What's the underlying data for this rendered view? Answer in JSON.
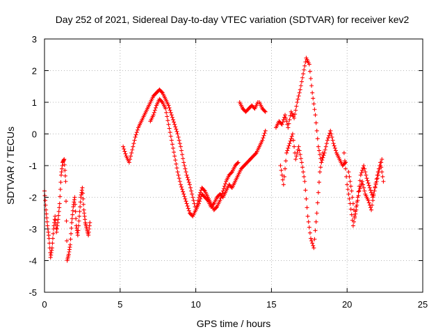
{
  "chart_data": {
    "type": "scatter",
    "title": "Day 252 of 2021, Sidereal Day-to-day VTEC variation (SDTVAR) for receiver kev2",
    "xlabel": "GPS time / hours",
    "ylabel": "SDTVAR / TECUs",
    "xlim": [
      0,
      25
    ],
    "ylim": [
      -5,
      3
    ],
    "xticks": [
      0,
      5,
      10,
      15,
      20,
      25
    ],
    "yticks": [
      -5,
      -4,
      -3,
      -2,
      -1,
      0,
      1,
      2,
      3
    ],
    "xtick_labels": [
      "0",
      "5",
      "10",
      "15",
      "20",
      "25"
    ],
    "ytick_labels": [
      "-5",
      "-4",
      "-3",
      "-2",
      "-1",
      "0",
      "1",
      "2",
      "3"
    ],
    "grid": true,
    "marker": "+",
    "series": [
      {
        "name": "SDTVAR",
        "color": "#ff0000",
        "segments": [
          {
            "x": [
              0.0,
              0.1,
              0.2,
              0.3,
              0.4,
              0.5,
              0.6,
              0.7,
              0.8,
              0.9,
              1.0,
              1.1,
              1.2,
              1.3,
              1.4,
              1.5,
              1.6,
              1.7,
              1.8,
              1.9,
              2.0,
              2.1,
              2.2,
              2.3,
              2.4,
              2.5,
              2.6,
              2.7,
              2.8,
              2.9,
              3.0
            ],
            "y": [
              -1.8,
              -2.4,
              -2.9,
              -3.3,
              -3.9,
              -3.6,
              -3.0,
              -2.6,
              -3.1,
              -2.7,
              -2.2,
              -1.3,
              -0.9,
              -0.8,
              -1.5,
              -4.0,
              -3.8,
              -3.5,
              -2.8,
              -2.3,
              -2.0,
              -2.9,
              -3.2,
              -2.6,
              -2.0,
              -1.7,
              -2.4,
              -2.8,
              -3.0,
              -3.2,
              -2.8
            ]
          },
          {
            "x": [
              5.2,
              5.4,
              5.6,
              5.8,
              6.0,
              6.2,
              6.4,
              6.6,
              6.8,
              7.0,
              7.2,
              7.4,
              7.6,
              7.8,
              8.0,
              8.2,
              8.4,
              8.6,
              8.8,
              9.0,
              9.2,
              9.4,
              9.6,
              9.8,
              10.0,
              10.2,
              10.4,
              10.6,
              10.8,
              11.0,
              11.2,
              11.4,
              11.6,
              11.8,
              12.0,
              12.2,
              12.4,
              12.6,
              12.8,
              13.0,
              13.2,
              13.4,
              13.6,
              13.8,
              14.0,
              14.2,
              14.4,
              14.6
            ],
            "y": [
              -0.4,
              -0.7,
              -0.9,
              -0.5,
              -0.1,
              0.2,
              0.4,
              0.6,
              0.8,
              1.0,
              1.2,
              1.3,
              1.4,
              1.3,
              1.1,
              0.9,
              0.6,
              0.3,
              0.0,
              -0.4,
              -0.9,
              -1.3,
              -1.6,
              -2.0,
              -2.4,
              -2.2,
              -1.9,
              -2.0,
              -2.1,
              -2.3,
              -2.2,
              -2.0,
              -1.9,
              -2.0,
              -1.8,
              -1.6,
              -1.7,
              -1.5,
              -1.3,
              -1.1,
              -1.0,
              -0.9,
              -0.8,
              -0.7,
              -0.6,
              -0.4,
              -0.2,
              0.1
            ]
          },
          {
            "x": [
              7.0,
              7.2,
              7.4,
              7.6,
              7.8,
              8.0,
              8.2,
              8.4,
              8.6,
              8.8,
              9.0,
              9.2,
              9.4,
              9.6,
              9.8,
              10.0,
              10.2,
              10.4,
              10.6,
              10.8,
              11.0,
              11.2,
              11.4,
              11.6,
              11.8,
              12.0,
              12.2,
              12.4,
              12.6,
              12.8
            ],
            "y": [
              0.4,
              0.6,
              0.9,
              1.1,
              1.0,
              0.8,
              0.3,
              -0.2,
              -0.7,
              -1.2,
              -1.6,
              -1.9,
              -2.2,
              -2.5,
              -2.6,
              -2.4,
              -2.0,
              -1.7,
              -1.8,
              -2.0,
              -2.2,
              -2.4,
              -2.3,
              -2.1,
              -1.8,
              -1.5,
              -1.3,
              -1.2,
              -1.0,
              -0.9
            ]
          },
          {
            "x": [
              12.9,
              13.1,
              13.3,
              13.5,
              13.7,
              13.9,
              14.1
            ],
            "y": [
              1.0,
              0.8,
              0.7,
              0.8,
              0.9,
              0.8,
              1.0
            ]
          },
          {
            "x": [
              14.2,
              14.4,
              14.6
            ],
            "y": [
              1.0,
              0.8,
              0.7
            ]
          },
          {
            "x": [
              15.3,
              15.5,
              15.7,
              15.9,
              16.1,
              16.3,
              16.5,
              16.7,
              16.9,
              17.1,
              17.3,
              17.5,
              17.7,
              17.9,
              18.1,
              18.3,
              18.5,
              18.7,
              18.9,
              19.1,
              19.3,
              19.5,
              19.7,
              19.9
            ],
            "y": [
              0.2,
              0.4,
              0.3,
              0.6,
              0.2,
              0.7,
              0.5,
              1.0,
              1.4,
              1.9,
              2.4,
              2.2,
              1.3,
              0.6,
              -0.4,
              -0.9,
              -0.6,
              -0.2,
              0.1,
              -0.3,
              -0.6,
              -0.8,
              -1.0,
              -0.9
            ]
          },
          {
            "x": [
              15.6,
              15.8,
              16.0,
              16.2,
              16.4,
              16.6,
              16.8,
              17.0,
              17.2,
              17.4,
              17.6,
              17.8,
              18.0,
              18.2,
              18.4
            ],
            "y": [
              -1.0,
              -1.6,
              -0.6,
              -0.3,
              0.0,
              -0.8,
              -0.4,
              -0.9,
              -1.5,
              -2.6,
              -3.3,
              -3.6,
              -2.5,
              -1.2,
              -0.6
            ]
          },
          {
            "x": [
              19.8,
              20.0,
              20.2,
              20.4,
              20.6,
              20.8,
              21.0,
              21.2,
              21.4,
              21.6,
              21.8,
              22.0,
              22.2,
              22.4
            ],
            "y": [
              -0.6,
              -1.6,
              -2.2,
              -2.9,
              -2.4,
              -1.8,
              -1.5,
              -1.9,
              -2.1,
              -2.4,
              -1.8,
              -1.3,
              -0.9,
              -1.5
            ]
          },
          {
            "x": [
              20.1,
              20.3,
              20.5,
              20.7,
              20.9,
              21.1,
              21.3,
              21.5,
              21.7,
              21.9,
              22.1,
              22.3
            ],
            "y": [
              -1.2,
              -1.8,
              -2.6,
              -2.0,
              -1.3,
              -1.0,
              -1.4,
              -1.7,
              -2.0,
              -1.6,
              -1.2,
              -0.8
            ]
          }
        ]
      }
    ]
  }
}
